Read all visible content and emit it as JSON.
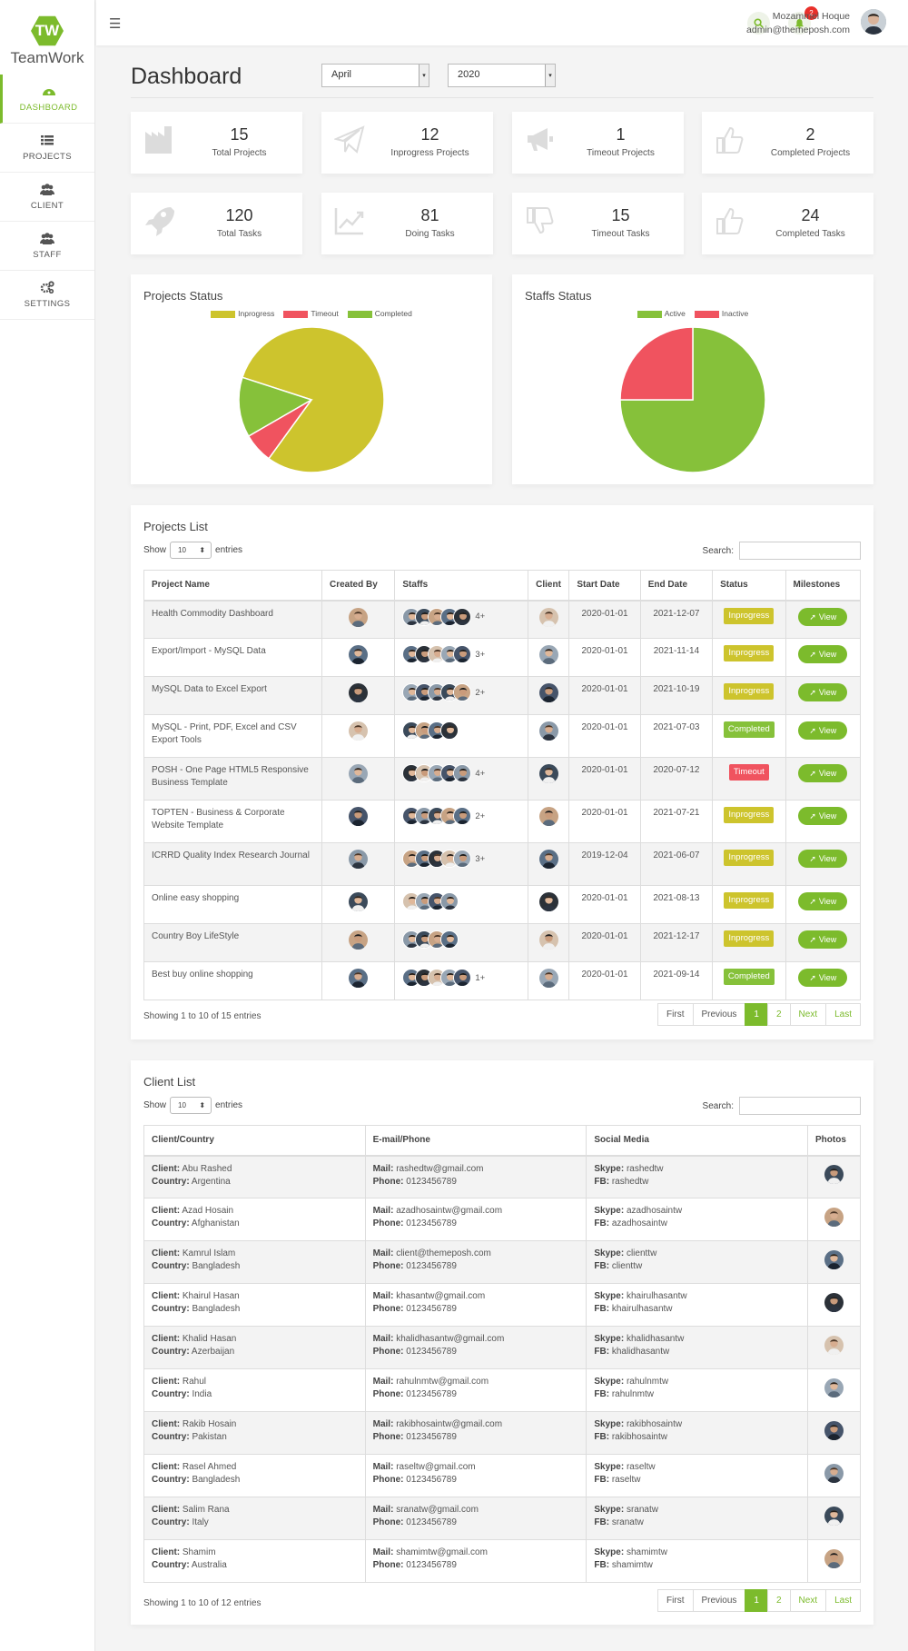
{
  "brand": {
    "logo_letter": "TW",
    "name": "TeamWork"
  },
  "nav": [
    {
      "label": "DASHBOARD",
      "icon": "dashboard-icon",
      "active": true
    },
    {
      "label": "PROJECTS",
      "icon": "list-icon"
    },
    {
      "label": "CLIENT",
      "icon": "users-icon"
    },
    {
      "label": "STAFF",
      "icon": "users-icon"
    },
    {
      "label": "SETTINGS",
      "icon": "gears-icon"
    }
  ],
  "topbar": {
    "user_name": "Mozammel Hoque",
    "user_email": "admin@themeposh.com",
    "notification_count": "2"
  },
  "page": {
    "title": "Dashboard",
    "month": "April",
    "year": "2020"
  },
  "stats": [
    {
      "value": "15",
      "label": "Total Projects",
      "icon": "factory-icon"
    },
    {
      "value": "12",
      "label": "Inprogress Projects",
      "icon": "paper-plane-icon"
    },
    {
      "value": "1",
      "label": "Timeout Projects",
      "icon": "megaphone-icon"
    },
    {
      "value": "2",
      "label": "Completed Projects",
      "icon": "thumbs-up-icon"
    },
    {
      "value": "120",
      "label": "Total Tasks",
      "icon": "rocket-icon"
    },
    {
      "value": "81",
      "label": "Doing Tasks",
      "icon": "line-chart-icon"
    },
    {
      "value": "15",
      "label": "Timeout Tasks",
      "icon": "thumbs-down-icon"
    },
    {
      "value": "24",
      "label": "Completed Tasks",
      "icon": "thumbs-up-icon"
    }
  ],
  "chart_data": [
    {
      "type": "pie",
      "title": "Projects Status",
      "series": [
        {
          "name": "Inprogress",
          "value": 12,
          "color": "#cdc42d"
        },
        {
          "name": "Timeout",
          "value": 1,
          "color": "#f0535f"
        },
        {
          "name": "Completed",
          "value": 2,
          "color": "#86c13a"
        }
      ]
    },
    {
      "type": "pie",
      "title": "Staffs Status",
      "series": [
        {
          "name": "Active",
          "value": 75,
          "color": "#86c13a"
        },
        {
          "name": "Inactive",
          "value": 25,
          "color": "#f0535f"
        }
      ]
    }
  ],
  "projects": {
    "title": "Projects List",
    "show": "Show",
    "len": "10",
    "entries": "entries",
    "search": "Search:",
    "columns": [
      "Project Name",
      "Created By",
      "Staffs",
      "Client",
      "Start Date",
      "End Date",
      "Status",
      "Milestones"
    ],
    "rows": [
      {
        "name": "Health Commodity Dashboard",
        "staff_more": "4+",
        "start": "2020-01-01",
        "end": "2021-12-07",
        "status": "Inprogress",
        "view": "View"
      },
      {
        "name": "Export/Import - MySQL Data",
        "staff_more": "3+",
        "start": "2020-01-01",
        "end": "2021-11-14",
        "status": "Inprogress",
        "view": "View"
      },
      {
        "name": "MySQL Data to Excel Export",
        "staff_more": "2+",
        "start": "2020-01-01",
        "end": "2021-10-19",
        "status": "Inprogress",
        "view": "View"
      },
      {
        "name": "MySQL - Print, PDF, Excel and CSV Export Tools",
        "staff_more": "",
        "start": "2020-01-01",
        "end": "2021-07-03",
        "status": "Completed",
        "view": "View"
      },
      {
        "name": "POSH - One Page HTML5 Responsive Business Template",
        "staff_more": "4+",
        "start": "2020-01-01",
        "end": "2020-07-12",
        "status": "Timeout",
        "view": "View"
      },
      {
        "name": "TOPTEN - Business & Corporate Website Template",
        "staff_more": "2+",
        "start": "2020-01-01",
        "end": "2021-07-21",
        "status": "Inprogress",
        "view": "View"
      },
      {
        "name": "ICRRD Quality Index Research Journal",
        "staff_more": "3+",
        "start": "2019-12-04",
        "end": "2021-06-07",
        "status": "Inprogress",
        "view": "View"
      },
      {
        "name": "Online easy shopping",
        "staff_more": "",
        "start": "2020-01-01",
        "end": "2021-08-13",
        "status": "Inprogress",
        "view": "View"
      },
      {
        "name": "Country Boy LifeStyle",
        "staff_more": "",
        "start": "2020-01-01",
        "end": "2021-12-17",
        "status": "Inprogress",
        "view": "View"
      },
      {
        "name": "Best buy online shopping",
        "staff_more": "1+",
        "start": "2020-01-01",
        "end": "2021-09-14",
        "status": "Completed",
        "view": "View"
      }
    ],
    "info": "Showing 1 to 10 of 15 entries",
    "pager": [
      "First",
      "Previous",
      "1",
      "2",
      "Next",
      "Last"
    ]
  },
  "clients": {
    "title": "Client List",
    "show": "Show",
    "len": "10",
    "entries": "entries",
    "search": "Search:",
    "columns": [
      "Client/Country",
      "E-mail/Phone",
      "Social Media",
      "Photos"
    ],
    "k": {
      "client": "Client:",
      "country": "Country:",
      "mail": "Mail:",
      "phone": "Phone:",
      "skype": "Skype:",
      "fb": "FB:"
    },
    "rows": [
      {
        "client": "Abu Rashed",
        "country": "Argentina",
        "mail": "rashedtw@gmail.com",
        "phone": "0123456789",
        "skype": "rashedtw",
        "fb": "rashedtw"
      },
      {
        "client": "Azad Hosain",
        "country": "Afghanistan",
        "mail": "azadhosaintw@gmail.com",
        "phone": "0123456789",
        "skype": "azadhosaintw",
        "fb": "azadhosaintw"
      },
      {
        "client": "Kamrul Islam",
        "country": "Bangladesh",
        "mail": "client@themeposh.com",
        "phone": "0123456789",
        "skype": "clienttw",
        "fb": "clienttw"
      },
      {
        "client": "Khairul Hasan",
        "country": "Bangladesh",
        "mail": "khasantw@gmail.com",
        "phone": "0123456789",
        "skype": "khairulhasantw",
        "fb": "khairulhasantw"
      },
      {
        "client": "Khalid Hasan",
        "country": "Azerbaijan",
        "mail": "khalidhasantw@gmail.com",
        "phone": "0123456789",
        "skype": "khalidhasantw",
        "fb": "khalidhasantw"
      },
      {
        "client": "Rahul",
        "country": "India",
        "mail": "rahulnmtw@gmail.com",
        "phone": "0123456789",
        "skype": "rahulnmtw",
        "fb": "rahulnmtw"
      },
      {
        "client": "Rakib Hosain",
        "country": "Pakistan",
        "mail": "rakibhosaintw@gmail.com",
        "phone": "0123456789",
        "skype": "rakibhosaintw",
        "fb": "rakibhosaintw"
      },
      {
        "client": "Rasel Ahmed",
        "country": "Bangladesh",
        "mail": "raseltw@gmail.com",
        "phone": "0123456789",
        "skype": "raseltw",
        "fb": "raseltw"
      },
      {
        "client": "Salim Rana",
        "country": "Italy",
        "mail": "sranatw@gmail.com",
        "phone": "0123456789",
        "skype": "sranatw",
        "fb": "sranatw"
      },
      {
        "client": "Shamim",
        "country": "Australia",
        "mail": "shamimtw@gmail.com",
        "phone": "0123456789",
        "skype": "shamimtw",
        "fb": "shamimtw"
      }
    ],
    "info": "Showing 1 to 10 of 12 entries",
    "pager": [
      "First",
      "Previous",
      "1",
      "2",
      "Next",
      "Last"
    ]
  },
  "colors": {
    "accent": "#7cbb2c",
    "inprogress": "#cdc42d",
    "timeout": "#f0535f",
    "completed": "#86c13a"
  }
}
